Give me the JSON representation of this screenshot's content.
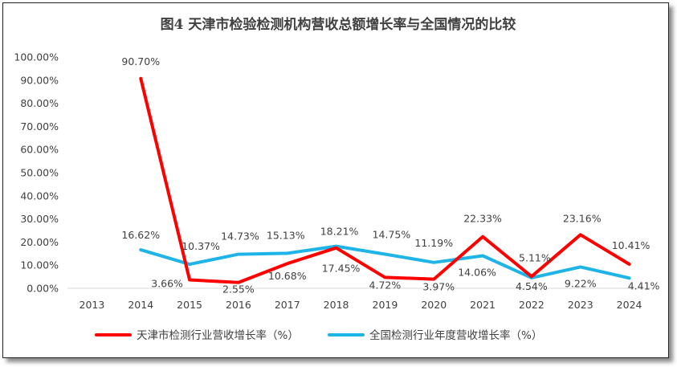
{
  "chart_data": {
    "type": "line",
    "title": "图4  天津市检验检测机构营收总额增长率与全国情况的比较",
    "categories": [
      "2013",
      "2014",
      "2015",
      "2016",
      "2017",
      "2018",
      "2019",
      "2020",
      "2021",
      "2022",
      "2023",
      "2024"
    ],
    "ylim": [
      0,
      100
    ],
    "yticks": [
      "0.00%",
      "10.00%",
      "20.00%",
      "30.00%",
      "40.00%",
      "50.00%",
      "60.00%",
      "70.00%",
      "80.00%",
      "90.00%",
      "100.00%"
    ],
    "ytick_values": [
      0,
      10,
      20,
      30,
      40,
      50,
      60,
      70,
      80,
      90,
      100
    ],
    "grid": false,
    "legend_position": "bottom",
    "series": [
      {
        "name": "天津市检测行业营收增长率（%）",
        "color": "#ff0000",
        "values": [
          null,
          90.7,
          3.66,
          2.55,
          10.68,
          17.45,
          4.72,
          3.97,
          22.33,
          5.11,
          23.16,
          10.41
        ],
        "labels": [
          "",
          "90.70%",
          "3.66%",
          "2.55%",
          "10.68%",
          "17.45%",
          "4.72%",
          "3.97%",
          "22.33%",
          "5.11%",
          "23.16%",
          "10.41%"
        ]
      },
      {
        "name": "全国检测行业年度营收增长率（%）",
        "color": "#1fb4e8",
        "values": [
          null,
          16.62,
          10.37,
          14.73,
          15.13,
          18.21,
          14.75,
          11.19,
          14.06,
          4.54,
          9.22,
          4.41
        ],
        "labels": [
          "",
          "16.62%",
          "10.37%",
          "14.73%",
          "15.13%",
          "18.21%",
          "14.75%",
          "11.19%",
          "14.06%",
          "4.54%",
          "9.22%",
          "4.41%"
        ]
      }
    ]
  }
}
